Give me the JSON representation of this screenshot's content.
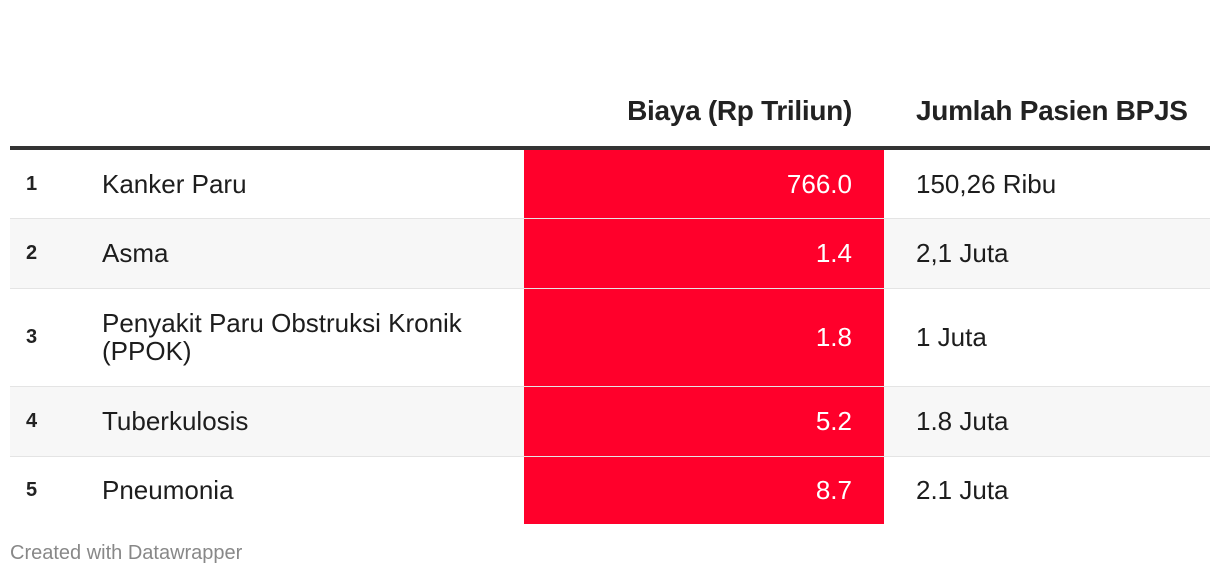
{
  "chart_data": {
    "type": "table",
    "headers": [
      "",
      "",
      "Biaya (Rp Triliun)",
      "Jumlah Pasien BPJS"
    ],
    "rows": [
      {
        "rank": "1",
        "name": "Kanker Paru",
        "cost": "766.0",
        "patients": "150,26 Ribu"
      },
      {
        "rank": "2",
        "name": "Asma",
        "cost": "1.4",
        "patients": "2,1 Juta"
      },
      {
        "rank": "3",
        "name": "Penyakit Paru Obstruksi Kronik (PPOK)",
        "cost": "1.8",
        "patients": "1 Juta"
      },
      {
        "rank": "4",
        "name": "Tuberkulosis",
        "cost": "5.2",
        "patients": "1.8 Juta"
      },
      {
        "rank": "5",
        "name": "Pneumonia",
        "cost": "8.7",
        "patients": "2.1 Juta"
      }
    ],
    "highlight_color": "#ff002b"
  },
  "footer": "Created with Datawrapper"
}
